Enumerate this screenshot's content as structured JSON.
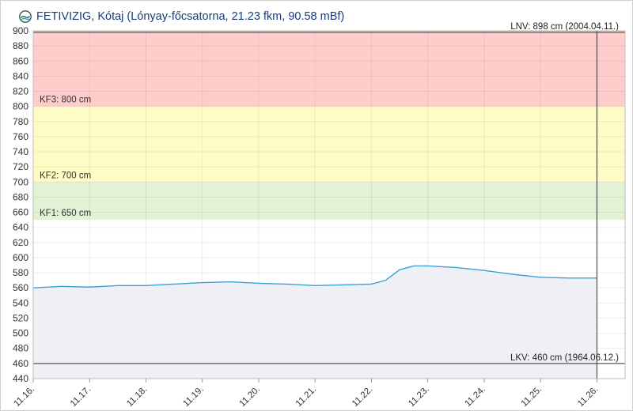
{
  "header": {
    "title": "FETIVIZIG, Kótaj (Lónyay-főcsatorna, 21.23 fkm, 90.58 mBf)",
    "logo_icon": "fetivizig-logo-icon"
  },
  "chart_data": {
    "type": "area",
    "ylim": [
      440,
      900
    ],
    "yticks": [
      440,
      460,
      480,
      500,
      520,
      540,
      560,
      580,
      600,
      620,
      640,
      660,
      680,
      700,
      720,
      740,
      760,
      780,
      800,
      820,
      840,
      860,
      880,
      900
    ],
    "xlim": [
      "2024-11-16",
      "2024-11-26T12:00"
    ],
    "xtick_labels": [
      "11.16.",
      "11.17.",
      "11.18.",
      "11.19.",
      "11.20.",
      "11.21.",
      "11.22.",
      "11.23.",
      "11.24.",
      "11.25.",
      "11.26."
    ],
    "xlabel": "",
    "ylabel": "",
    "grid": true,
    "colors": {
      "line": "#3aa0d6",
      "fill": "#eef0f6",
      "kf3_band": "#ffcccc",
      "kf2_band": "#fefcc4",
      "kf1_band": "#e3f1d4",
      "text_primary": "#1a3c78"
    },
    "bands": [
      {
        "from": 800,
        "to": 900,
        "label": "KF3: 800 cm",
        "color": "#ffcccc"
      },
      {
        "from": 700,
        "to": 800,
        "label": "KF2: 700 cm",
        "color": "#fefcc4"
      },
      {
        "from": 650,
        "to": 700,
        "label": "KF1: 650 cm",
        "color": "#e3f1d4"
      }
    ],
    "reference_lines": [
      {
        "value": 898,
        "label": "LNV: 898 cm (2004.04.11.)"
      },
      {
        "value": 460,
        "label": "LKV: 460 cm (1964.06.12.)"
      }
    ],
    "current_time": "2024-11-26T00:00",
    "series": [
      {
        "x": [
          "2024-11-16T00:00",
          "2024-11-16T12:00",
          "2024-11-17T00:00",
          "2024-11-17T12:00",
          "2024-11-18T00:00",
          "2024-11-18T12:00",
          "2024-11-19T00:00",
          "2024-11-19T12:00",
          "2024-11-20T00:00",
          "2024-11-20T12:00",
          "2024-11-21T00:00",
          "2024-11-21T12:00",
          "2024-11-22T00:00",
          "2024-11-22T06:00",
          "2024-11-22T12:00",
          "2024-11-22T18:00",
          "2024-11-23T00:00",
          "2024-11-23T12:00",
          "2024-11-24T00:00",
          "2024-11-24T12:00",
          "2024-11-25T00:00",
          "2024-11-25T12:00",
          "2024-11-26T00:00"
        ],
        "values": [
          560,
          562,
          561,
          563,
          563,
          565,
          567,
          568,
          566,
          565,
          563,
          564,
          565,
          570,
          584,
          589,
          589,
          587,
          583,
          578,
          574,
          573,
          573
        ]
      }
    ]
  }
}
